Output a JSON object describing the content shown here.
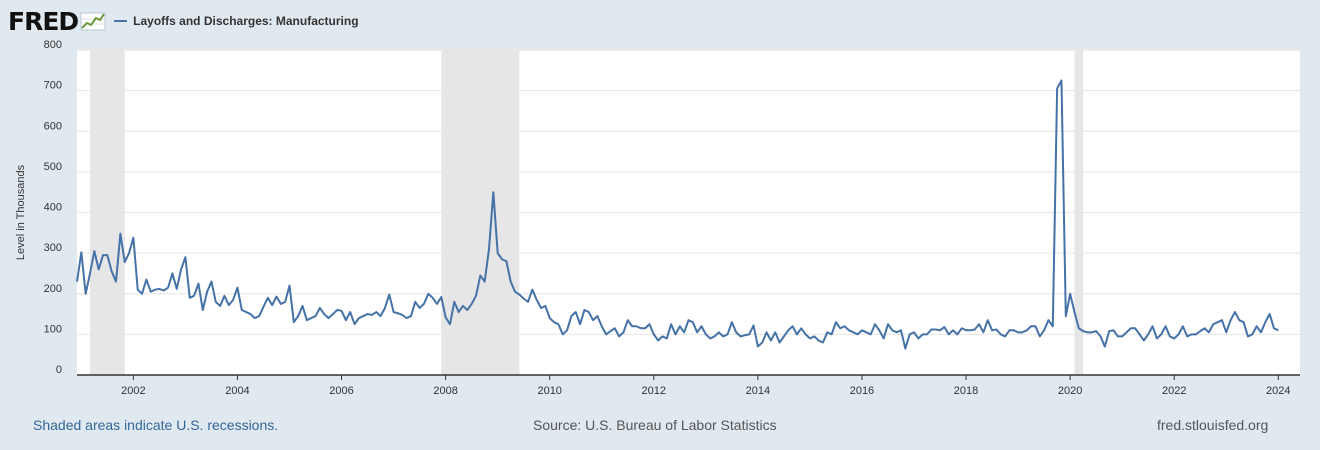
{
  "logo": {
    "text": "FRED"
  },
  "legend": {
    "label": "Layoffs and Discharges: Manufacturing"
  },
  "footer": {
    "recession_note": "Shaded areas indicate U.S. recessions.",
    "source": "Source: U.S. Bureau of Labor Statistics",
    "site": "fred.stlouisfed.org"
  },
  "colors": {
    "line": "#4572a7",
    "recession": "#e6e6e6",
    "background": "#e1e9f0",
    "plot": "#ffffff"
  },
  "chart_data": {
    "type": "line",
    "title": "Layoffs and Discharges: Manufacturing",
    "xlabel": "",
    "ylabel": "Level in Thousands",
    "xlim": [
      2000.917,
      2024.417
    ],
    "ylim": [
      0,
      800
    ],
    "xticks": [
      2002,
      2004,
      2006,
      2008,
      2010,
      2012,
      2014,
      2016,
      2018,
      2020,
      2022,
      2024
    ],
    "xtick_labels": [
      "2002",
      "2004",
      "2006",
      "2008",
      "2010",
      "2012",
      "2014",
      "2016",
      "2018",
      "2020",
      "2022",
      "2024"
    ],
    "yticks": [
      0,
      100,
      200,
      300,
      400,
      500,
      600,
      700,
      800
    ],
    "ytick_labels": [
      "0",
      "100",
      "200",
      "300",
      "400",
      "500",
      "600",
      "700",
      "800"
    ],
    "grid": true,
    "recessions": [
      [
        2001.167,
        2001.833
      ],
      [
        2007.917,
        2009.417
      ],
      [
        2020.083,
        2020.25
      ]
    ],
    "series": [
      {
        "name": "Layoffs and Discharges: Manufacturing",
        "start": 2000.917,
        "step": 0.0833333,
        "values": [
          230,
          302,
          200,
          250,
          305,
          260,
          295,
          295,
          255,
          230,
          348,
          278,
          300,
          338,
          210,
          200,
          235,
          205,
          210,
          212,
          208,
          215,
          250,
          212,
          260,
          290,
          190,
          195,
          225,
          160,
          205,
          230,
          180,
          170,
          195,
          172,
          185,
          215,
          160,
          155,
          150,
          140,
          145,
          168,
          190,
          172,
          193,
          175,
          180,
          220,
          130,
          145,
          170,
          135,
          140,
          145,
          165,
          150,
          140,
          150,
          160,
          158,
          135,
          155,
          125,
          140,
          145,
          150,
          148,
          155,
          145,
          165,
          198,
          155,
          152,
          148,
          140,
          145,
          180,
          165,
          175,
          200,
          190,
          175,
          192,
          142,
          125,
          180,
          155,
          170,
          160,
          175,
          195,
          245,
          230,
          310,
          450,
          300,
          285,
          280,
          230,
          205,
          198,
          188,
          180,
          210,
          185,
          165,
          170,
          140,
          130,
          125,
          100,
          110,
          145,
          155,
          125,
          160,
          155,
          135,
          145,
          120,
          100,
          108,
          115,
          95,
          105,
          135,
          120,
          120,
          115,
          115,
          125,
          100,
          85,
          95,
          90,
          125,
          100,
          120,
          105,
          135,
          130,
          105,
          120,
          100,
          90,
          95,
          105,
          95,
          100,
          130,
          105,
          95,
          98,
          100,
          122,
          70,
          80,
          105,
          85,
          105,
          80,
          95,
          110,
          120,
          100,
          115,
          100,
          90,
          95,
          85,
          80,
          105,
          100,
          130,
          115,
          120,
          110,
          105,
          100,
          110,
          105,
          100,
          125,
          110,
          90,
          125,
          110,
          105,
          110,
          65,
          100,
          105,
          90,
          100,
          100,
          112,
          112,
          110,
          118,
          100,
          110,
          100,
          115,
          110,
          110,
          112,
          125,
          105,
          135,
          110,
          112,
          100,
          95,
          110,
          110,
          105,
          105,
          110,
          120,
          120,
          95,
          110,
          135,
          120,
          705,
          725,
          145,
          200,
          155,
          115,
          108,
          105,
          105,
          108,
          95,
          70,
          108,
          110,
          95,
          95,
          105,
          115,
          115,
          100,
          85,
          100,
          120,
          90,
          100,
          120,
          95,
          90,
          100,
          120,
          95,
          100,
          100,
          108,
          115,
          105,
          125,
          130,
          135,
          105,
          135,
          155,
          135,
          130,
          95,
          100,
          120,
          105,
          130,
          150,
          115,
          110
        ]
      }
    ]
  }
}
